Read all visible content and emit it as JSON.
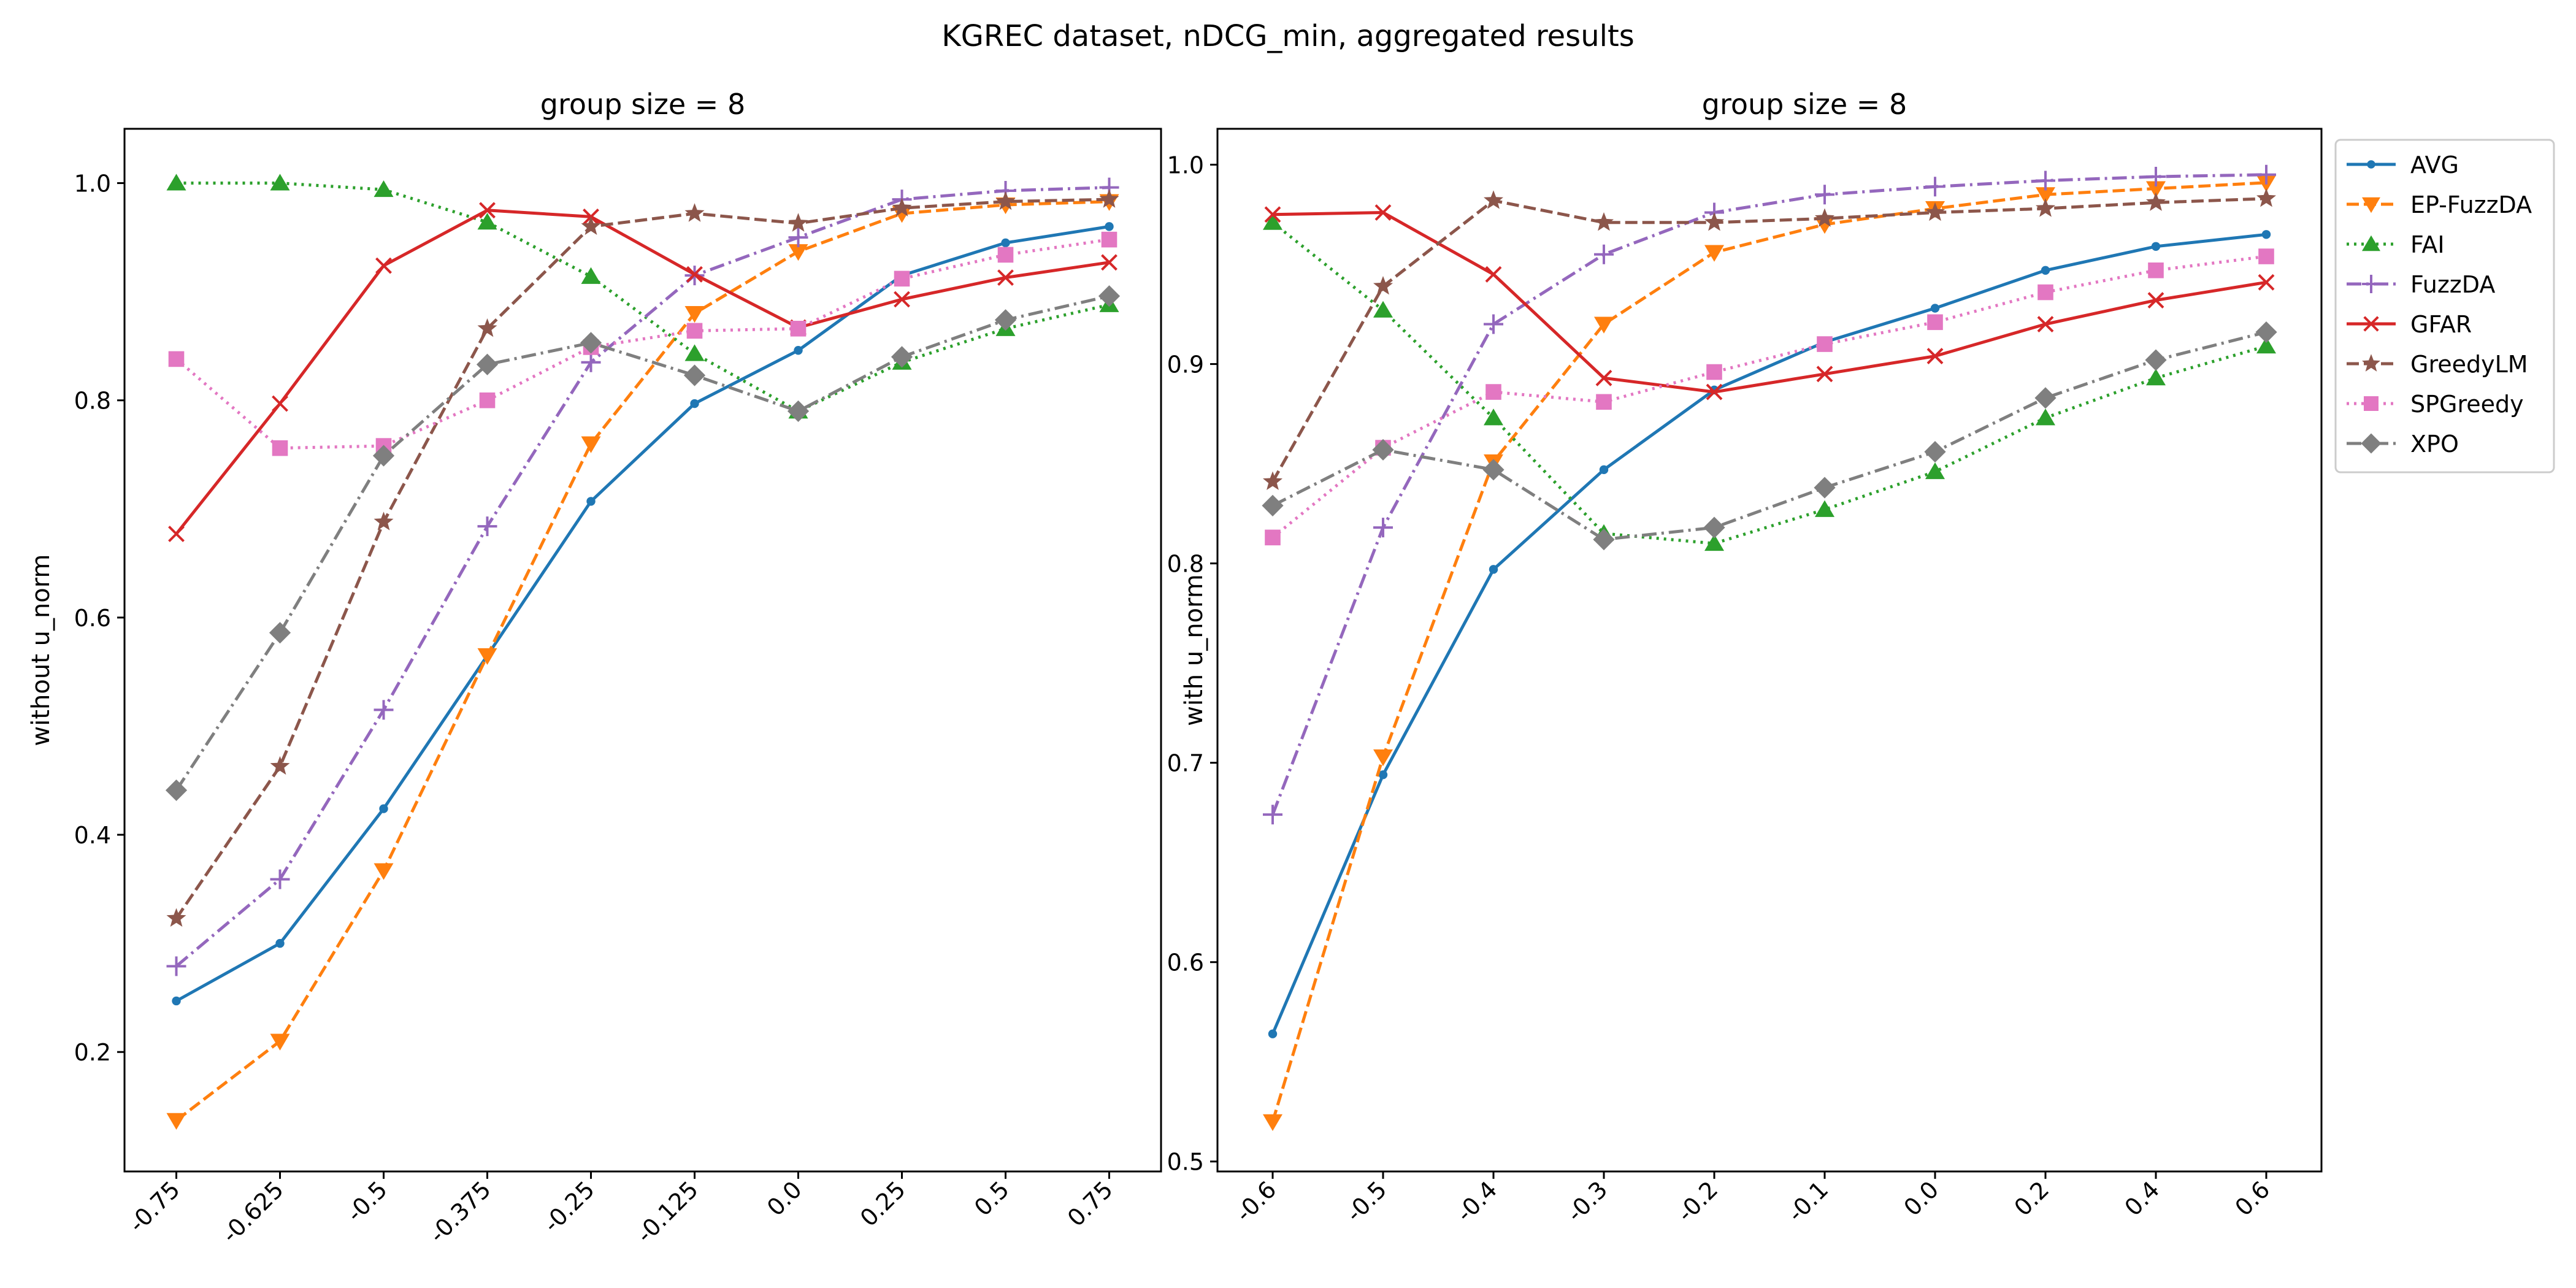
{
  "figure": {
    "suptitle": "KGREC dataset, nDCG_min, aggregated results"
  },
  "legend": {
    "placement": "right, upper, outside right panel",
    "entries": [
      {
        "name": "AVG",
        "color": "#1f77b4",
        "line": "solid",
        "marker": "point"
      },
      {
        "name": "EP-FuzzDA",
        "color": "#ff7f0e",
        "line": "dashed",
        "marker": "triangle-down"
      },
      {
        "name": "FAI",
        "color": "#2ca02c",
        "line": "dotted",
        "marker": "triangle-up"
      },
      {
        "name": "FuzzDA",
        "color": "#9467bd",
        "line": "dashdot",
        "marker": "plus"
      },
      {
        "name": "GFAR",
        "color": "#d62728",
        "line": "solid",
        "marker": "x"
      },
      {
        "name": "GreedyLM",
        "color": "#8c564b",
        "line": "dashed",
        "marker": "star"
      },
      {
        "name": "SPGreedy",
        "color": "#e377c2",
        "line": "dotted",
        "marker": "square"
      },
      {
        "name": "XPO",
        "color": "#7f7f7f",
        "line": "dashdot",
        "marker": "diamond"
      }
    ]
  },
  "chart_data": [
    {
      "type": "line",
      "title": "group size = 8",
      "xlabel": "",
      "ylabel": "without u_norm",
      "categories": [
        "-0.75",
        "-0.625",
        "-0.5",
        "-0.375",
        "-0.25",
        "-0.125",
        "0.0",
        "0.25",
        "0.5",
        "0.75"
      ],
      "ylim": [
        0.09,
        1.05
      ],
      "yticks": [
        0.2,
        0.4,
        0.6,
        0.8,
        1.0
      ],
      "ytick_labels": [
        "0.2",
        "0.4",
        "0.6",
        "0.8",
        "1.0"
      ],
      "grid": false,
      "series": [
        {
          "name": "AVG",
          "values": [
            0.247,
            0.3,
            0.424,
            0.565,
            0.707,
            0.797,
            0.846,
            0.915,
            0.945,
            0.96
          ]
        },
        {
          "name": "EP-FuzzDA",
          "values": [
            0.137,
            0.21,
            0.367,
            0.565,
            0.76,
            0.88,
            0.937,
            0.972,
            0.98,
            0.983
          ]
        },
        {
          "name": "FAI",
          "values": [
            1.0,
            1.0,
            0.994,
            0.964,
            0.914,
            0.843,
            0.79,
            0.835,
            0.866,
            0.888
          ]
        },
        {
          "name": "FuzzDA",
          "values": [
            0.279,
            0.359,
            0.515,
            0.684,
            0.835,
            0.915,
            0.95,
            0.985,
            0.993,
            0.996
          ]
        },
        {
          "name": "GFAR",
          "values": [
            0.677,
            0.797,
            0.924,
            0.975,
            0.969,
            0.916,
            0.867,
            0.893,
            0.913,
            0.927
          ]
        },
        {
          "name": "GreedyLM",
          "values": [
            0.323,
            0.463,
            0.688,
            0.866,
            0.96,
            0.972,
            0.963,
            0.977,
            0.983,
            0.985
          ]
        },
        {
          "name": "SPGreedy",
          "values": [
            0.838,
            0.756,
            0.758,
            0.8,
            0.849,
            0.864,
            0.866,
            0.912,
            0.934,
            0.948
          ]
        },
        {
          "name": "XPO",
          "values": [
            0.441,
            0.586,
            0.749,
            0.833,
            0.853,
            0.823,
            0.79,
            0.84,
            0.874,
            0.896
          ]
        }
      ]
    },
    {
      "type": "line",
      "title": "group size = 8",
      "xlabel": "",
      "ylabel": "with u_norm",
      "categories": [
        "-0.6",
        "-0.5",
        "-0.4",
        "-0.3",
        "-0.2",
        "-0.1",
        "0.0",
        "0.2",
        "0.4",
        "0.6"
      ],
      "ylim": [
        0.495,
        1.018
      ],
      "yticks": [
        0.5,
        0.6,
        0.7,
        0.8,
        0.9,
        1.0
      ],
      "ytick_labels": [
        "0.5",
        "0.6",
        "0.7",
        "0.8",
        "0.9",
        "1.0"
      ],
      "grid": false,
      "series": [
        {
          "name": "AVG",
          "values": [
            0.564,
            0.694,
            0.797,
            0.847,
            0.887,
            0.911,
            0.928,
            0.947,
            0.959,
            0.965
          ]
        },
        {
          "name": "EP-FuzzDA",
          "values": [
            0.52,
            0.703,
            0.851,
            0.92,
            0.956,
            0.97,
            0.978,
            0.985,
            0.988,
            0.991
          ]
        },
        {
          "name": "FAI",
          "values": [
            0.971,
            0.927,
            0.873,
            0.815,
            0.81,
            0.827,
            0.846,
            0.873,
            0.893,
            0.909
          ]
        },
        {
          "name": "FuzzDA",
          "values": [
            0.674,
            0.818,
            0.92,
            0.955,
            0.976,
            0.985,
            0.989,
            0.992,
            0.994,
            0.995
          ]
        },
        {
          "name": "GFAR",
          "values": [
            0.975,
            0.976,
            0.945,
            0.893,
            0.886,
            0.895,
            0.904,
            0.92,
            0.932,
            0.941
          ]
        },
        {
          "name": "GreedyLM",
          "values": [
            0.841,
            0.939,
            0.982,
            0.971,
            0.971,
            0.973,
            0.976,
            0.978,
            0.981,
            0.983
          ]
        },
        {
          "name": "SPGreedy",
          "values": [
            0.813,
            0.858,
            0.886,
            0.881,
            0.896,
            0.91,
            0.921,
            0.936,
            0.947,
            0.954
          ]
        },
        {
          "name": "XPO",
          "values": [
            0.829,
            0.857,
            0.847,
            0.812,
            0.818,
            0.838,
            0.856,
            0.883,
            0.902,
            0.916
          ]
        }
      ]
    }
  ]
}
